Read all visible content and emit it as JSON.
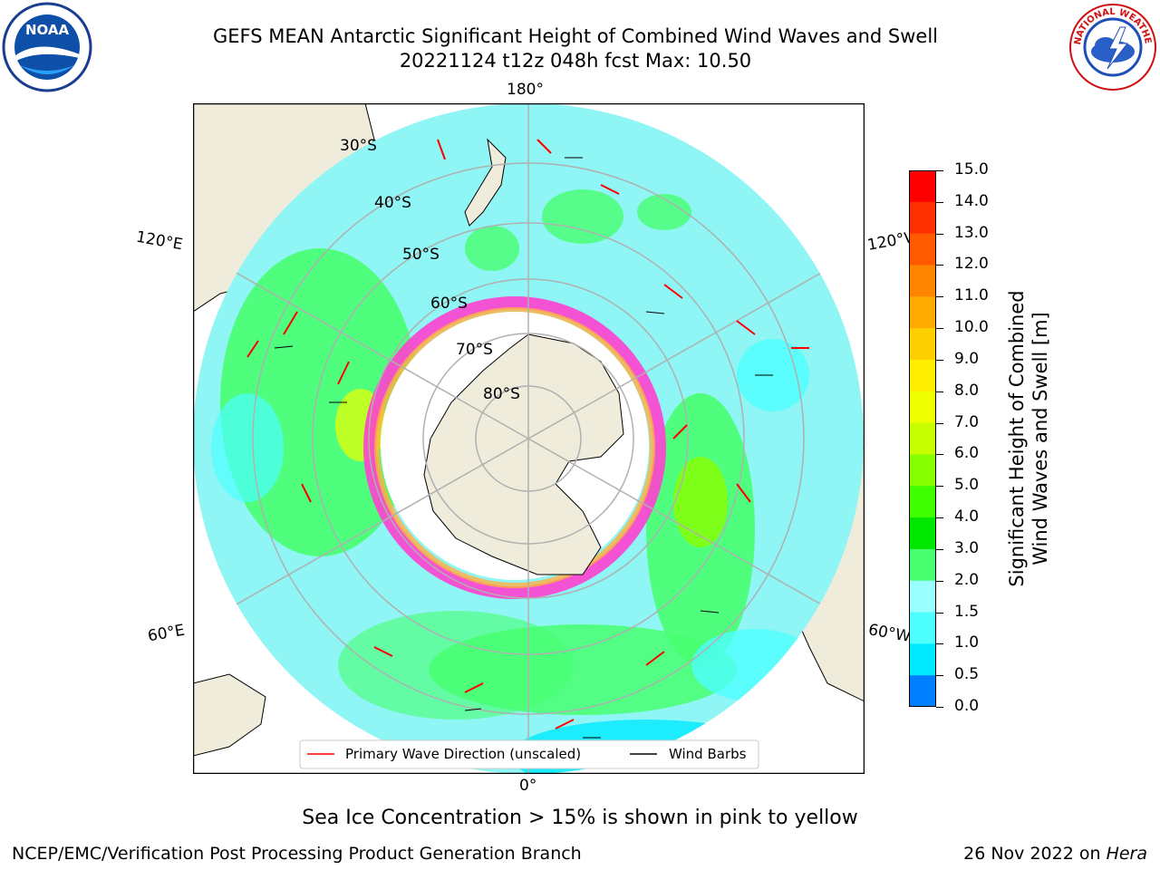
{
  "title": {
    "line1": "GEFS MEAN Antarctic Significant Height of Combined Wind Waves and Swell",
    "line2": "20221124 t12z 048h fcst   Max: 10.50"
  },
  "logos": {
    "left": {
      "name": "noaa-logo",
      "text": "NOAA"
    },
    "right": {
      "name": "nws-logo",
      "ring_text": "NATIONAL WEATHER SERVICE"
    }
  },
  "map": {
    "projection": "south-polar-stereographic",
    "lon_labels": [
      "180°",
      "120°E",
      "120°W",
      "60°E",
      "60°W",
      "0°"
    ],
    "lat_labels": [
      "30°S",
      "40°S",
      "50°S",
      "60°S",
      "70°S",
      "80°S"
    ],
    "colors": {
      "land": "#efecdc",
      "ice": "#ffffff",
      "grid": "#b0b0b0",
      "ocean_low": "#00ffff",
      "ocean_mid": "#8ff5f5"
    }
  },
  "legend": {
    "primary_wave": "Primary Wave Direction (unscaled)",
    "wind_barbs": "Wind Barbs"
  },
  "colorbar": {
    "ticks": [
      "15.0",
      "14.0",
      "13.0",
      "12.0",
      "11.0",
      "10.0",
      "9.0",
      "8.0",
      "7.0",
      "6.0",
      "5.0",
      "4.0",
      "3.0",
      "2.0",
      "1.5",
      "1.0",
      "0.5",
      "0.0"
    ],
    "colors": [
      "#ff0000",
      "#ff3000",
      "#ff5a00",
      "#ff8400",
      "#ffaa00",
      "#ffd000",
      "#ffee00",
      "#eeff00",
      "#c8ff00",
      "#88ff00",
      "#40ff00",
      "#00e800",
      "#48ff70",
      "#99ffff",
      "#4dffff",
      "#00eaff",
      "#0080ff",
      "#0000ff"
    ],
    "label_line1": "Significant Height of Combined",
    "label_line2": "Wind Waves and Swell [m]"
  },
  "note": "Sea Ice Concentration > 15% is shown in pink to yellow",
  "footer": {
    "left": "NCEP/EMC/Verification Post Processing Product Generation Branch",
    "right_date": "26 Nov 2022 on ",
    "right_host": "Hera"
  }
}
